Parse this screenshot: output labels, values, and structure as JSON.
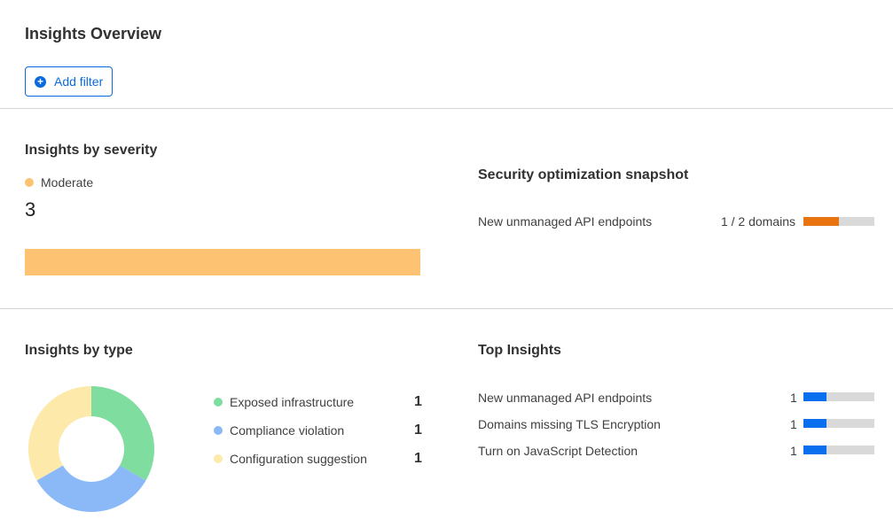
{
  "header": {
    "title": "Insights Overview",
    "add_filter_label": "Add filter"
  },
  "severity": {
    "title": "Insights by severity",
    "legend": "Moderate",
    "count": "3",
    "color": "#fdc372"
  },
  "snapshot": {
    "title": "Security optimization snapshot",
    "rows": [
      {
        "label": "New unmanaged API endpoints",
        "value": "1 / 2 domains",
        "fraction": 0.5,
        "color": "#e8730f"
      }
    ]
  },
  "by_type": {
    "title": "Insights by type",
    "items": [
      {
        "label": "Exposed infrastructure",
        "count": "1",
        "value": 1,
        "color": "#7fdd9f"
      },
      {
        "label": "Compliance violation",
        "count": "1",
        "value": 1,
        "color": "#8bb9f8"
      },
      {
        "label": "Configuration suggestion",
        "count": "1",
        "value": 1,
        "color": "#fde9a9"
      }
    ]
  },
  "top": {
    "title": "Top Insights",
    "bar_color": "#0a6fef",
    "rows": [
      {
        "label": "New unmanaged API endpoints",
        "value": "1",
        "fraction": 0.33
      },
      {
        "label": "Domains missing TLS Encryption",
        "value": "1",
        "fraction": 0.33
      },
      {
        "label": "Turn on JavaScript Detection",
        "value": "1",
        "fraction": 0.33
      }
    ]
  }
}
